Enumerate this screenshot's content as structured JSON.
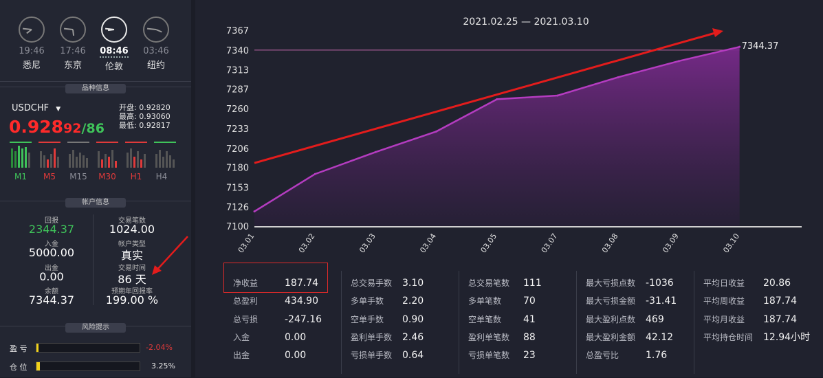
{
  "clocks": [
    {
      "time": "19:46",
      "city": "悉尼",
      "h": 7,
      "m": 46,
      "active": false
    },
    {
      "time": "17:46",
      "city": "东京",
      "h": 5,
      "m": 46,
      "active": false
    },
    {
      "time": "08:46",
      "city": "伦敦",
      "h": 8,
      "m": 46,
      "active": true
    },
    {
      "time": "03:46",
      "city": "纽约",
      "h": 3,
      "m": 46,
      "active": false
    }
  ],
  "symbol_section": {
    "title": "品种信息",
    "symbol": "USDCHF",
    "price_main": "0.928",
    "price_bid": "92",
    "price_sep": "/",
    "price_ask": "86",
    "open_label": "开盘:",
    "open": "0.92820",
    "high_label": "最高:",
    "high": "0.93060",
    "low_label": "最低:",
    "low": "0.92817",
    "timeframes": [
      {
        "label": "M1",
        "color": "#3fc35a"
      },
      {
        "label": "M5",
        "color": "#e03a3a"
      },
      {
        "label": "M15",
        "color": "#8a8c96"
      },
      {
        "label": "M30",
        "color": "#e03a3a"
      },
      {
        "label": "H1",
        "color": "#e03a3a"
      },
      {
        "label": "H4",
        "color": "#8a8c96"
      }
    ]
  },
  "account": {
    "title": "帐户信息",
    "equity_label": "回报",
    "equity": "2344.37",
    "trades_label": "交易笔数",
    "trades": "1024.00",
    "deposit_label": "入金",
    "deposit": "5000.00",
    "type_label": "帐户类型",
    "type": "真实",
    "withdraw_label": "出金",
    "withdraw": "0.00",
    "days_label": "交易时间",
    "days": "86 天",
    "balance_label": "余额",
    "balance": "7344.37",
    "annual_label": "预期年回报率",
    "annual": "199.00 %"
  },
  "risk": {
    "title": "风险提示",
    "profit_label": "盈 亏",
    "profit_value": "-2.04%",
    "profit_level": 0.02,
    "position_label": "仓 位",
    "position_value": "3.25%",
    "position_level": 0.0325
  },
  "chart_data": {
    "type": "area",
    "title": "2021.02.25 — 2021.03.10",
    "categories": [
      "03.01",
      "03.02",
      "03.03",
      "03.04",
      "03.05",
      "03.07",
      "03.08",
      "03.09",
      "03.10"
    ],
    "values": [
      7120,
      7171,
      7201,
      7229,
      7273,
      7278,
      7303,
      7325,
      7344.37
    ],
    "ylim": [
      7100,
      7367
    ],
    "yticks": [
      7100,
      7126,
      7153,
      7180,
      7206,
      7233,
      7260,
      7287,
      7313,
      7340,
      7367
    ],
    "last_label": "7344.37",
    "reference_line": 7340,
    "trend_arrow": {
      "from_y": 7186,
      "to_y": 7367
    },
    "colors": {
      "line": "#b43cc0",
      "area_top": "#7a2a8c",
      "area_bottom": "#2a1f3a",
      "arrow": "#e31c1c",
      "ref": "#c06aa8"
    }
  },
  "stats": {
    "col1": [
      {
        "k": "净收益",
        "v": "187.74"
      },
      {
        "k": "总盈利",
        "v": "434.90"
      },
      {
        "k": "总亏损",
        "v": "-247.16"
      },
      {
        "k": "入金",
        "v": "0.00"
      },
      {
        "k": "出金",
        "v": "0.00"
      }
    ],
    "col2": [
      {
        "k": "总交易手数",
        "v": "3.10"
      },
      {
        "k": "多单手数",
        "v": "2.20"
      },
      {
        "k": "空单手数",
        "v": "0.90"
      },
      {
        "k": "盈利单手数",
        "v": "2.46"
      },
      {
        "k": "亏损单手数",
        "v": "0.64"
      }
    ],
    "col3": [
      {
        "k": "总交易笔数",
        "v": "111"
      },
      {
        "k": "多单笔数",
        "v": "70"
      },
      {
        "k": "空单笔数",
        "v": "41"
      },
      {
        "k": "盈利单笔数",
        "v": "88"
      },
      {
        "k": "亏损单笔数",
        "v": "23"
      }
    ],
    "col4": [
      {
        "k": "最大亏损点数",
        "v": "-1036"
      },
      {
        "k": "最大亏损金额",
        "v": "-31.41"
      },
      {
        "k": "最大盈利点数",
        "v": "469"
      },
      {
        "k": "最大盈利金额",
        "v": "42.12"
      },
      {
        "k": "总盈亏比",
        "v": "1.76"
      }
    ],
    "col5": [
      {
        "k": "平均日收益",
        "v": "20.86"
      },
      {
        "k": "平均周收益",
        "v": "187.74"
      },
      {
        "k": "平均月收益",
        "v": "187.74"
      },
      {
        "k": "平均持仓时间",
        "v": "12.94小时"
      }
    ]
  }
}
